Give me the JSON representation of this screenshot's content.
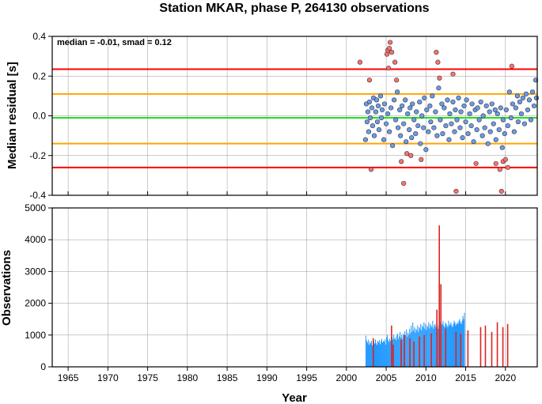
{
  "chart_data": [
    {
      "type": "scatter",
      "title": "Station MKAR, phase P, 264130 observations",
      "ylabel": "Median residual [s]",
      "xlabel": "",
      "xlim": [
        1963,
        2024
      ],
      "ylim": [
        -0.4,
        0.4
      ],
      "x_ticks": [
        "1965",
        "1970",
        "1975",
        "1980",
        "1985",
        "1990",
        "1995",
        "2000",
        "2005",
        "2010",
        "2015",
        "2020"
      ],
      "y_ticks": [
        "-0.4",
        "-0.2",
        "0.0",
        "0.2",
        "0.4"
      ],
      "annotation": "median = -0.01, smad = 0.12",
      "grid": true,
      "reference_lines": [
        {
          "name": "median",
          "y": -0.01,
          "color": "#22dd22"
        },
        {
          "name": "+1 smad",
          "y": 0.11,
          "color": "#ffa500"
        },
        {
          "name": "-1 smad",
          "y": -0.14,
          "color": "#ffa500"
        },
        {
          "name": "+2 smad",
          "y": 0.235,
          "color": "#ff0000"
        },
        {
          "name": "-2 smad",
          "y": -0.26,
          "color": "#ff0000"
        }
      ],
      "series": [
        {
          "color": "#ff7070",
          "points": [
            [
              2001.7,
              0.27
            ],
            [
              2002.9,
              0.18
            ],
            [
              2003.1,
              -0.27
            ],
            [
              2005.1,
              0.31
            ],
            [
              2005.2,
              0.33
            ],
            [
              2005.3,
              0.24
            ],
            [
              2005.4,
              0.34
            ],
            [
              2005.5,
              0.37
            ],
            [
              2005.7,
              0.32
            ],
            [
              2006.1,
              0.27
            ],
            [
              2006.3,
              0.18
            ],
            [
              2006.9,
              -0.23
            ],
            [
              2007.2,
              -0.34
            ],
            [
              2007.6,
              -0.19
            ],
            [
              2008.1,
              -0.2
            ],
            [
              2009.4,
              -0.22
            ],
            [
              2011.3,
              0.32
            ],
            [
              2011.5,
              0.27
            ],
            [
              2011.7,
              0.19
            ],
            [
              2013.4,
              0.21
            ],
            [
              2013.8,
              -0.38
            ],
            [
              2016.3,
              -0.24
            ],
            [
              2018.8,
              -0.24
            ],
            [
              2019.3,
              -0.27
            ],
            [
              2019.5,
              -0.38
            ],
            [
              2019.7,
              -0.23
            ],
            [
              2020.0,
              -0.22
            ],
            [
              2020.3,
              -0.26
            ],
            [
              2020.8,
              0.25
            ]
          ]
        },
        {
          "color": "#6a9be8",
          "points": [
            [
              2002.4,
              -0.12
            ],
            [
              2002.5,
              0.06
            ],
            [
              2002.6,
              -0.03
            ],
            [
              2002.7,
              0.02
            ],
            [
              2002.8,
              -0.08
            ],
            [
              2002.9,
              0.07
            ],
            [
              2003.0,
              -0.01
            ],
            [
              2003.2,
              0.04
            ],
            [
              2003.3,
              -0.05
            ],
            [
              2003.4,
              0.09
            ],
            [
              2003.5,
              -0.1
            ],
            [
              2003.7,
              0.02
            ],
            [
              2003.8,
              0.08
            ],
            [
              2003.9,
              -0.03
            ],
            [
              2004.0,
              0.05
            ],
            [
              2004.1,
              -0.07
            ],
            [
              2004.3,
              0.1
            ],
            [
              2004.4,
              -0.01
            ],
            [
              2004.5,
              0.03
            ],
            [
              2004.7,
              -0.12
            ],
            [
              2004.8,
              0.06
            ],
            [
              2005.0,
              -0.04
            ],
            [
              2005.2,
              0.01
            ],
            [
              2005.4,
              -0.08
            ],
            [
              2005.6,
              0.04
            ],
            [
              2005.8,
              -0.15
            ],
            [
              2006.0,
              0.08
            ],
            [
              2006.2,
              -0.02
            ],
            [
              2006.4,
              0.12
            ],
            [
              2006.5,
              -0.06
            ],
            [
              2006.7,
              0.03
            ],
            [
              2006.8,
              -0.1
            ],
            [
              2007.0,
              0.05
            ],
            [
              2007.2,
              -0.04
            ],
            [
              2007.4,
              0.08
            ],
            [
              2007.5,
              -0.13
            ],
            [
              2007.7,
              0.01
            ],
            [
              2007.9,
              -0.07
            ],
            [
              2008.0,
              0.04
            ],
            [
              2008.2,
              -0.11
            ],
            [
              2008.3,
              0.06
            ],
            [
              2008.5,
              -0.02
            ],
            [
              2008.7,
              -0.09
            ],
            [
              2008.8,
              0.02
            ],
            [
              2009.0,
              -0.05
            ],
            [
              2009.2,
              0.07
            ],
            [
              2009.3,
              -0.14
            ],
            [
              2009.5,
              0.0
            ],
            [
              2009.7,
              -0.06
            ],
            [
              2009.8,
              0.09
            ],
            [
              2010.0,
              -0.17
            ],
            [
              2010.1,
              0.03
            ],
            [
              2010.3,
              -0.08
            ],
            [
              2010.5,
              0.05
            ],
            [
              2010.6,
              -0.03
            ],
            [
              2010.8,
              0.1
            ],
            [
              2011.0,
              -0.06
            ],
            [
              2011.2,
              0.02
            ],
            [
              2011.4,
              -0.1
            ],
            [
              2011.6,
              0.14
            ],
            [
              2011.8,
              -0.02
            ],
            [
              2012.0,
              0.06
            ],
            [
              2012.1,
              -0.09
            ],
            [
              2012.3,
              0.04
            ],
            [
              2012.5,
              -0.05
            ],
            [
              2012.7,
              0.08
            ],
            [
              2012.9,
              -0.12
            ],
            [
              2013.0,
              0.01
            ],
            [
              2013.2,
              -0.04
            ],
            [
              2013.4,
              0.07
            ],
            [
              2013.6,
              -0.08
            ],
            [
              2013.7,
              0.03
            ],
            [
              2013.9,
              -0.02
            ],
            [
              2014.1,
              0.09
            ],
            [
              2014.3,
              -0.06
            ],
            [
              2014.4,
              0.02
            ],
            [
              2014.6,
              -0.11
            ],
            [
              2014.8,
              0.05
            ],
            [
              2015.0,
              -0.03
            ],
            [
              2015.1,
              0.08
            ],
            [
              2015.3,
              -0.09
            ],
            [
              2015.5,
              0.01
            ],
            [
              2015.7,
              -0.05
            ],
            [
              2015.8,
              0.06
            ],
            [
              2016.0,
              -0.13
            ],
            [
              2016.2,
              0.03
            ],
            [
              2016.4,
              -0.07
            ],
            [
              2016.5,
              0.04
            ],
            [
              2016.7,
              -0.02
            ],
            [
              2016.9,
              0.07
            ],
            [
              2017.1,
              -0.1
            ],
            [
              2017.2,
              0.0
            ],
            [
              2017.4,
              -0.06
            ],
            [
              2017.6,
              0.05
            ],
            [
              2017.8,
              -0.14
            ],
            [
              2018.0,
              0.02
            ],
            [
              2018.1,
              -0.08
            ],
            [
              2018.3,
              0.06
            ],
            [
              2018.5,
              -0.04
            ],
            [
              2018.7,
              0.03
            ],
            [
              2018.8,
              -0.12
            ],
            [
              2019.0,
              0.01
            ],
            [
              2019.2,
              -0.07
            ],
            [
              2019.4,
              0.04
            ],
            [
              2019.6,
              -0.16
            ],
            [
              2019.7,
              -0.02
            ],
            [
              2019.9,
              -0.09
            ],
            [
              2020.1,
              0.03
            ],
            [
              2020.3,
              -0.05
            ],
            [
              2020.5,
              0.12
            ],
            [
              2020.7,
              -0.01
            ],
            [
              2020.9,
              0.06
            ],
            [
              2021.1,
              -0.08
            ],
            [
              2021.3,
              0.04
            ],
            [
              2021.5,
              0.1
            ],
            [
              2021.6,
              -0.03
            ],
            [
              2021.8,
              0.07
            ],
            [
              2022.0,
              0.01
            ],
            [
              2022.2,
              0.09
            ],
            [
              2022.4,
              -0.04
            ],
            [
              2022.6,
              0.11
            ],
            [
              2022.8,
              0.03
            ],
            [
              2023.0,
              0.08
            ],
            [
              2023.2,
              -0.02
            ],
            [
              2023.4,
              0.12
            ],
            [
              2023.6,
              0.05
            ],
            [
              2023.8,
              0.18
            ],
            [
              2023.9,
              0.09
            ]
          ]
        }
      ]
    },
    {
      "type": "bar",
      "title": "",
      "xlabel": "Year",
      "ylabel": "Observations",
      "xlim": [
        1963,
        2024
      ],
      "ylim": [
        0,
        5000
      ],
      "x_ticks": [
        "1965",
        "1970",
        "1975",
        "1980",
        "1985",
        "1990",
        "1995",
        "2000",
        "2005",
        "2010",
        "2015",
        "2020"
      ],
      "y_ticks": [
        "0",
        "1000",
        "2000",
        "3000",
        "4000",
        "5000"
      ],
      "grid": true,
      "series": [
        {
          "color": "#2299ff",
          "start": 2002.4,
          "step": 0.1,
          "values": [
            980,
            820,
            760,
            850,
            700,
            790,
            740,
            820,
            680,
            760,
            800,
            730,
            860,
            750,
            690,
            820,
            770,
            840,
            710,
            800,
            880,
            760,
            820,
            790,
            860,
            700,
            930,
            1000,
            840,
            780,
            890,
            820,
            760,
            940,
            860,
            1010,
            880,
            920,
            840,
            990,
            1050,
            880,
            960,
            1100,
            920,
            1000,
            880,
            1040,
            960,
            1120,
            1000,
            1180,
            950,
            1080,
            1000,
            1200,
            1050,
            1300,
            1100,
            1400,
            1150,
            1250,
            1080,
            1200,
            1150,
            1300,
            1100,
            1250,
            1200,
            1350,
            1150,
            1300,
            1250,
            1400,
            1200,
            1350,
            1150,
            1300,
            1250,
            1400,
            1200,
            1350,
            1300,
            1250,
            1450,
            1200,
            1300,
            1350,
            1250,
            1400,
            1300,
            1200,
            1350,
            1400,
            1250,
            1300,
            1350,
            1450,
            1300,
            1250,
            1400,
            1350,
            1300,
            1250,
            1450,
            1300,
            1350,
            1400,
            1300,
            1250,
            1350,
            1450,
            1400,
            1300,
            1350,
            1400,
            1350,
            1450,
            1500,
            1400,
            1350,
            1450,
            1600,
            1500,
            1700
          ]
        },
        {
          "color": "#dd2222",
          "bars": [
            [
              2003.3,
              900
            ],
            [
              2005.6,
              1300
            ],
            [
              2005.8,
              700
            ],
            [
              2006.8,
              850
            ],
            [
              2007.2,
              1000
            ],
            [
              2007.9,
              900
            ],
            [
              2008.4,
              800
            ],
            [
              2009.1,
              950
            ],
            [
              2009.7,
              1000
            ],
            [
              2010.6,
              1050
            ],
            [
              2011.3,
              1800
            ],
            [
              2011.6,
              4450
            ],
            [
              2011.8,
              2600
            ],
            [
              2012.4,
              1200
            ],
            [
              2013.7,
              1100
            ],
            [
              2014.3,
              1050
            ],
            [
              2015.2,
              1150
            ],
            [
              2016.8,
              1250
            ],
            [
              2017.4,
              1300
            ],
            [
              2018.2,
              1100
            ],
            [
              2018.9,
              1400
            ],
            [
              2019.6,
              1250
            ],
            [
              2020.2,
              1350
            ]
          ]
        }
      ]
    }
  ]
}
